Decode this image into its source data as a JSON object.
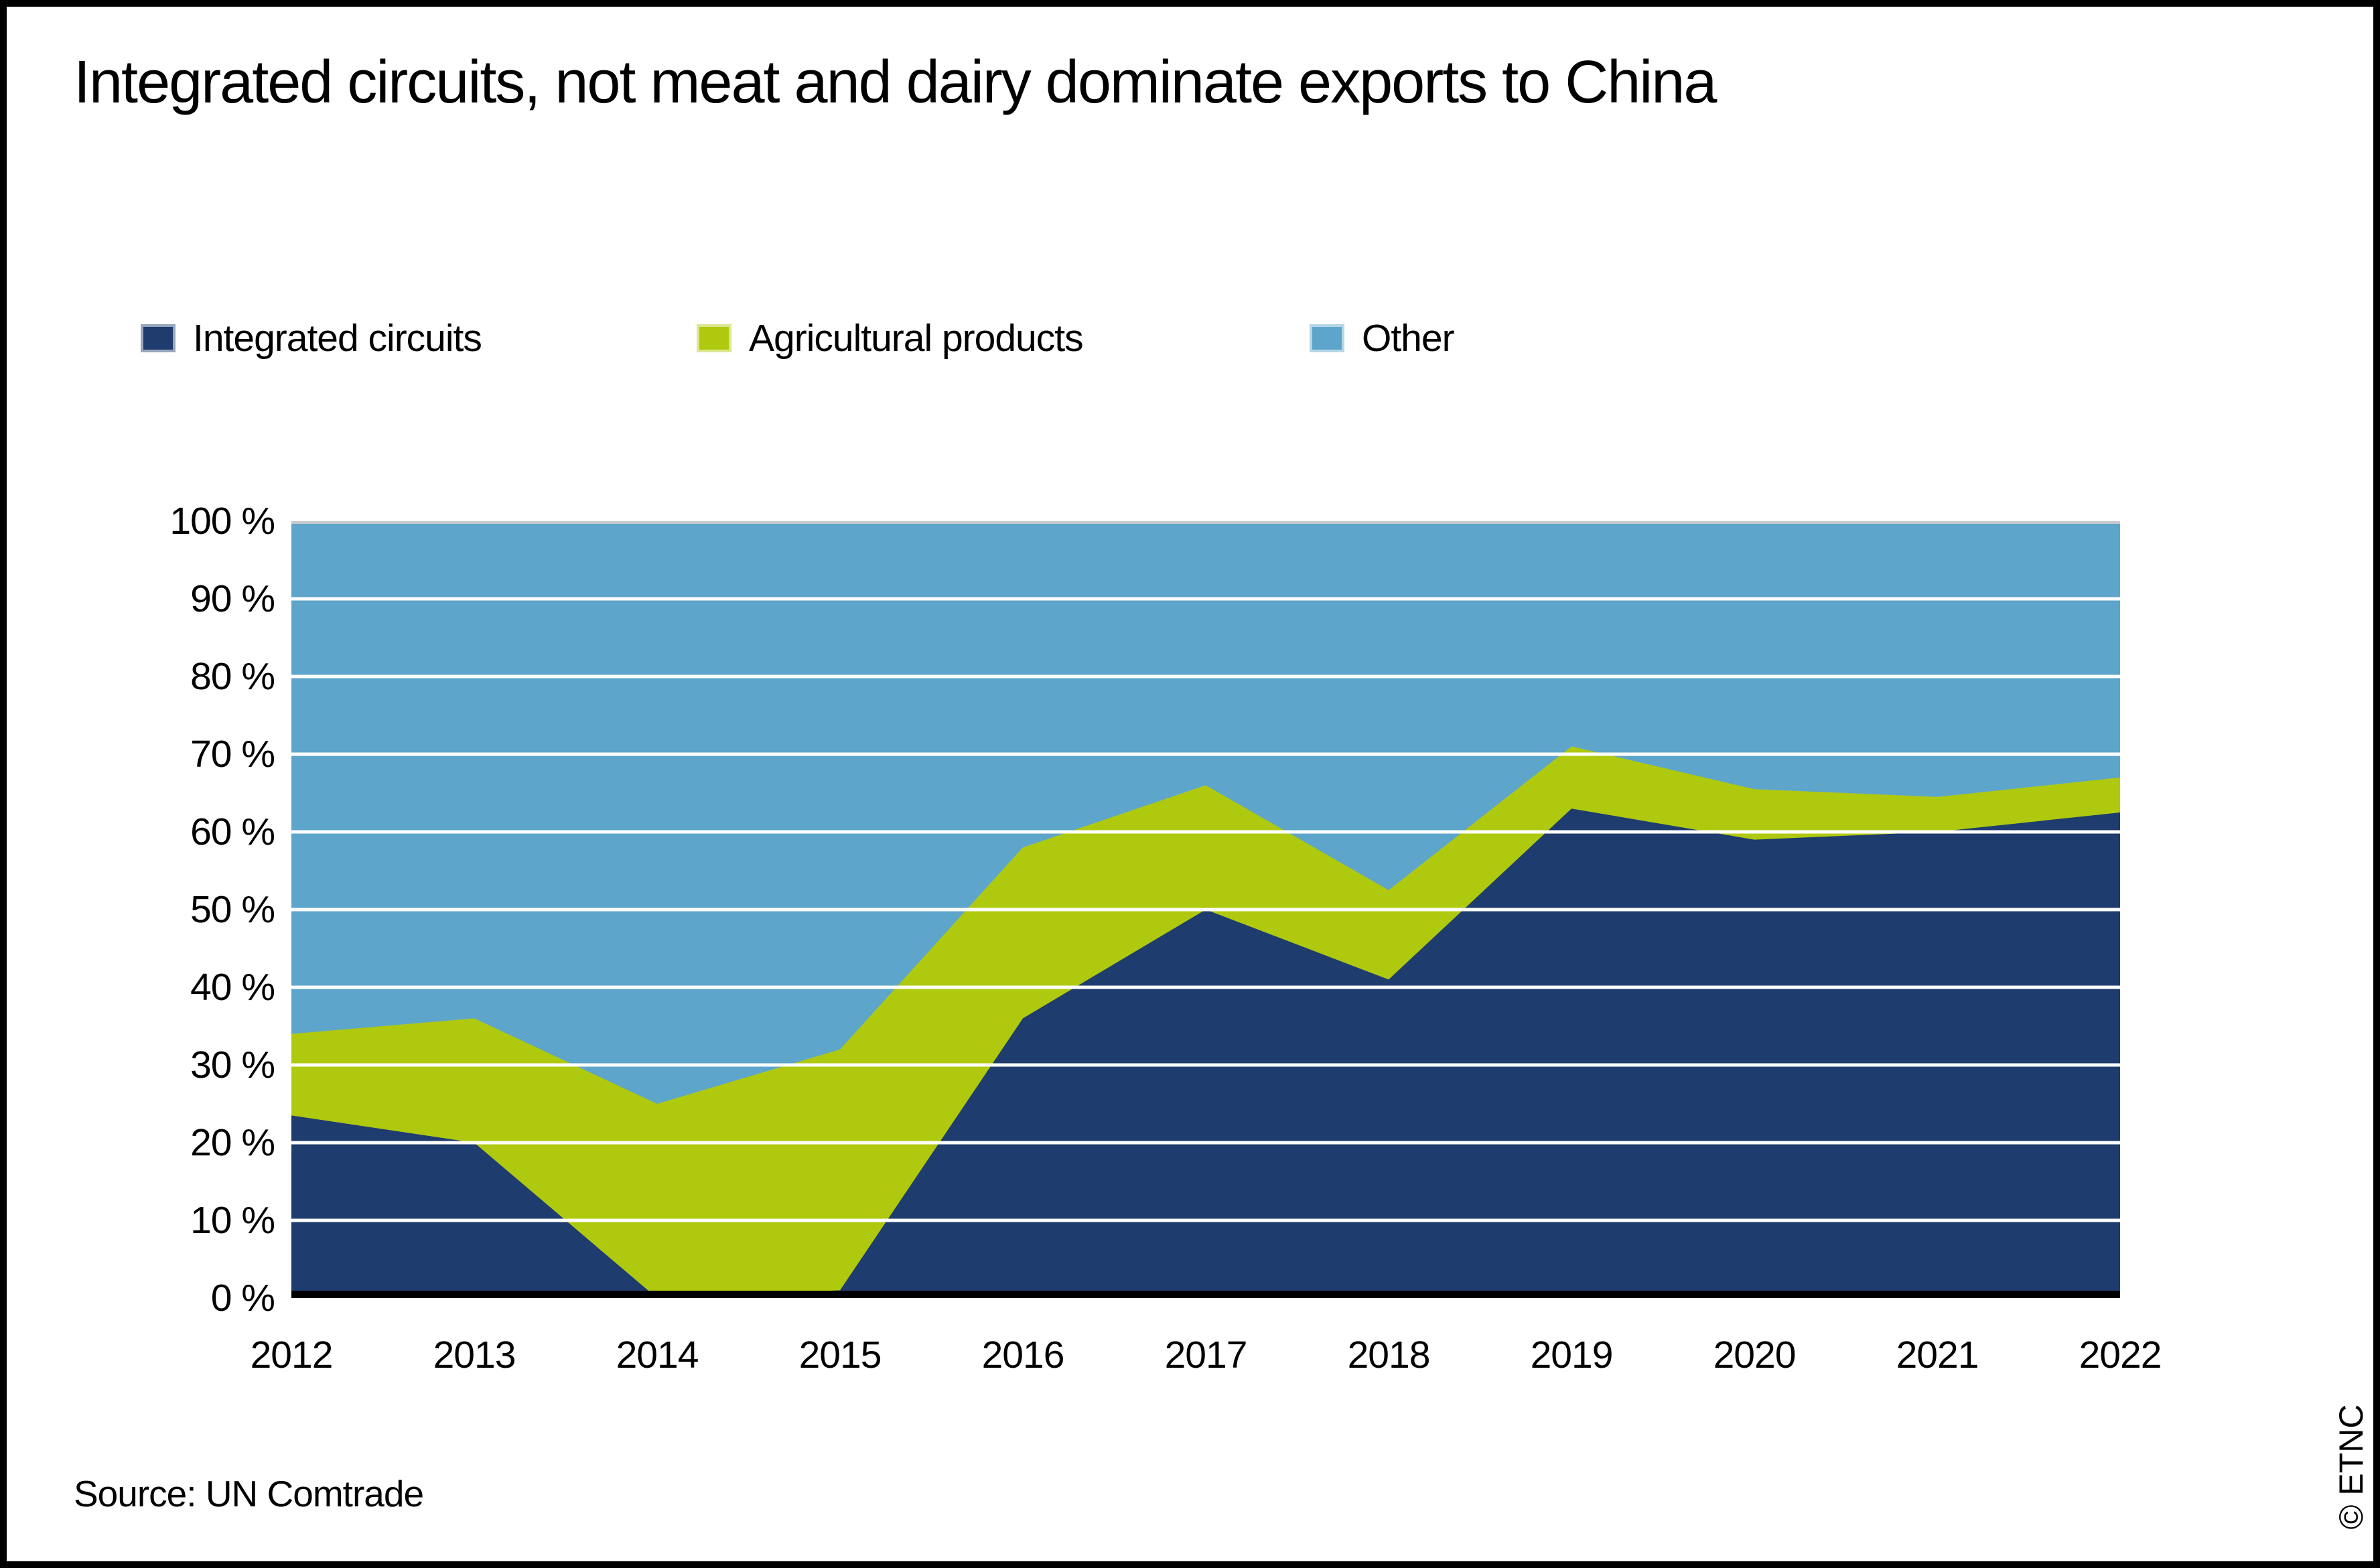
{
  "title": "Integrated circuits, not meat and dairy dominate exports to China",
  "legend": {
    "items": [
      {
        "label": "Integrated circuits",
        "color": "#1E3C6E"
      },
      {
        "label": "Agricultural products",
        "color": "#AFC90F"
      },
      {
        "label": "Other",
        "color": "#5DA5CA"
      }
    ]
  },
  "chart_data": {
    "type": "area",
    "stacked": true,
    "percent_stacked": true,
    "title": "Integrated circuits, not meat and dairy dominate exports to China",
    "x": [
      2012,
      2013,
      2014,
      2015,
      2016,
      2017,
      2018,
      2019,
      2020,
      2021,
      2022
    ],
    "series": [
      {
        "name": "Integrated circuits",
        "color": "#1E3C6E",
        "values": [
          23.5,
          20,
          0,
          1,
          36,
          50,
          41,
          63,
          59,
          60,
          62.5
        ]
      },
      {
        "name": "Agricultural products",
        "color": "#AFC90F",
        "values": [
          10.5,
          16,
          25,
          31,
          22,
          16,
          11.5,
          8,
          6.5,
          4.5,
          4.5
        ]
      },
      {
        "name": "Other",
        "color": "#5DA5CA",
        "values": [
          66,
          64,
          75,
          68,
          42,
          34,
          47.5,
          29,
          34.5,
          35.5,
          33
        ]
      }
    ],
    "xlabel": "",
    "ylabel": "",
    "ylim": [
      0,
      100
    ],
    "yticks": [
      "0 %",
      "10 %",
      "20 %",
      "30 %",
      "40 %",
      "50 %",
      "60 %",
      "70 %",
      "80 %",
      "90 %",
      "100 %"
    ],
    "grid": "horizontal-white-on-top",
    "gridline_color": "#FFFFFF",
    "axis_line_color": "#000000",
    "plot_top_edge_color": "#C8CBCD",
    "legend_position": "top"
  },
  "source": "Source: UN Comtrade",
  "watermark": "© ETNC"
}
